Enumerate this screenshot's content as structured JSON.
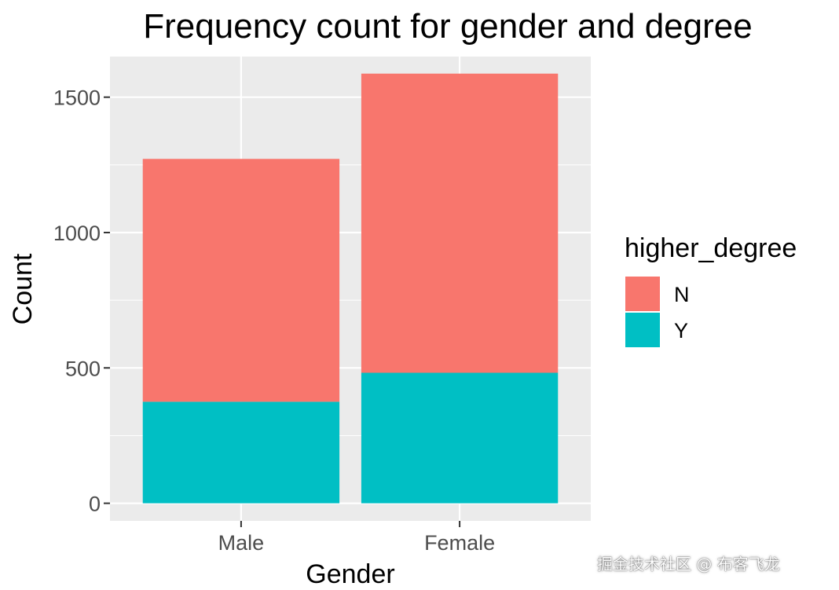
{
  "chart_data": {
    "type": "bar",
    "stacked": true,
    "title": "Frequency count for gender and degree",
    "xlabel": "Gender",
    "ylabel": "Count",
    "categories": [
      "Male",
      "Female"
    ],
    "series": [
      {
        "name": "N",
        "values": [
          897,
          1105
        ],
        "color": "#F8766D"
      },
      {
        "name": "Y",
        "values": [
          375,
          482
        ],
        "color": "#00BFC4"
      }
    ],
    "stack_order_bottom_to_top": [
      "Y",
      "N"
    ],
    "ylim": [
      -65,
      1650
    ],
    "yticks": [
      0,
      500,
      1000,
      1500
    ],
    "grid": true,
    "panel_background": "#EBEBEB",
    "legend": {
      "title": "higher_degree",
      "position": "right",
      "entries": [
        "N",
        "Y"
      ]
    }
  },
  "watermark": "掘金技术社区 @ 布客飞龙"
}
